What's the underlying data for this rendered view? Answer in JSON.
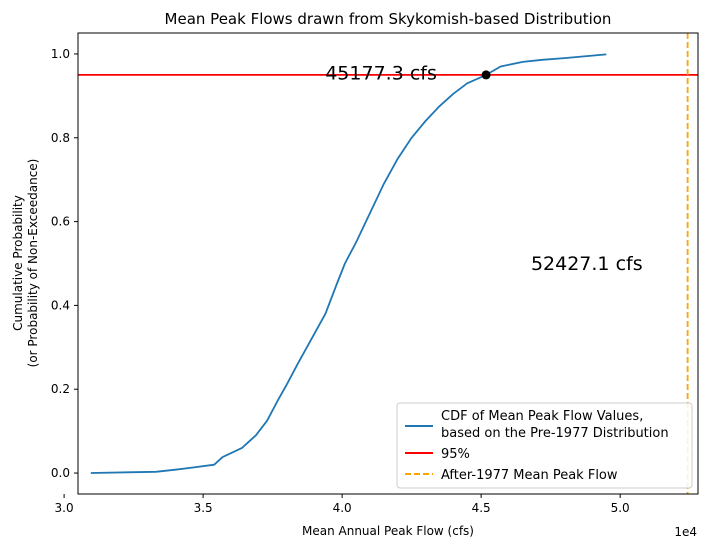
{
  "chart_data": {
    "type": "line",
    "title": "Mean Peak Flows drawn from Skykomish-based Distribution",
    "xlabel": "Mean Annual Peak Flow (cfs)",
    "ylabel_line1": "Cumulative Probability",
    "ylabel_line2": "(or Probability of Non-Exceedance)",
    "x_offset_label": "1e4",
    "xlim": [
      30500,
      52800
    ],
    "ylim": [
      -0.05,
      1.05
    ],
    "x_ticks": [
      30000,
      35000,
      40000,
      45000,
      50000
    ],
    "x_tick_labels": [
      "3.0",
      "3.5",
      "4.0",
      "4.5",
      "5.0"
    ],
    "y_ticks": [
      0.0,
      0.2,
      0.4,
      0.6,
      0.8,
      1.0
    ],
    "y_tick_labels": [
      "0.0",
      "0.2",
      "0.4",
      "0.6",
      "0.8",
      "1.0"
    ],
    "colors": {
      "cdf": "#1f77b4",
      "threshold": "#ff0000",
      "after_mean": "#ffa500",
      "marker": "#000000"
    },
    "series": [
      {
        "name": "CDF of Mean Peak Flow Values, based on the Pre-1977 Distribution",
        "x": [
          30960,
          33300,
          34000,
          34500,
          35400,
          35700,
          36400,
          36900,
          37300,
          37700,
          38000,
          38400,
          38900,
          39400,
          39800,
          40100,
          40500,
          41000,
          41500,
          42000,
          42500,
          43000,
          43500,
          44000,
          44500,
          45177,
          45700,
          46500,
          47200,
          48000,
          48500,
          49000,
          49500
        ],
        "y": [
          0.0,
          0.003,
          0.008,
          0.012,
          0.02,
          0.038,
          0.06,
          0.09,
          0.125,
          0.175,
          0.21,
          0.26,
          0.32,
          0.38,
          0.45,
          0.5,
          0.55,
          0.62,
          0.69,
          0.75,
          0.8,
          0.84,
          0.875,
          0.905,
          0.93,
          0.95,
          0.97,
          0.981,
          0.986,
          0.99,
          0.993,
          0.996,
          0.999
        ]
      }
    ],
    "threshold": {
      "label": "95%",
      "y": 0.95
    },
    "after_mean": {
      "label": "After-1977 Mean Peak Flow",
      "x": 52427.1
    },
    "marker": {
      "x": 45177.3,
      "y": 0.95
    },
    "annotations": [
      {
        "text": "45177.3 cfs",
        "x": 41400,
        "y": 0.955
      },
      {
        "text": "52427.1 cfs",
        "x": 48800,
        "y": 0.5
      }
    ],
    "legend": {
      "placement": "lower right",
      "cdf_line1": "CDF of Mean Peak Flow Values,",
      "cdf_line2": "based on the Pre-1977 Distribution",
      "threshold_label": "95%",
      "after_label": "After-1977 Mean Peak Flow"
    }
  }
}
